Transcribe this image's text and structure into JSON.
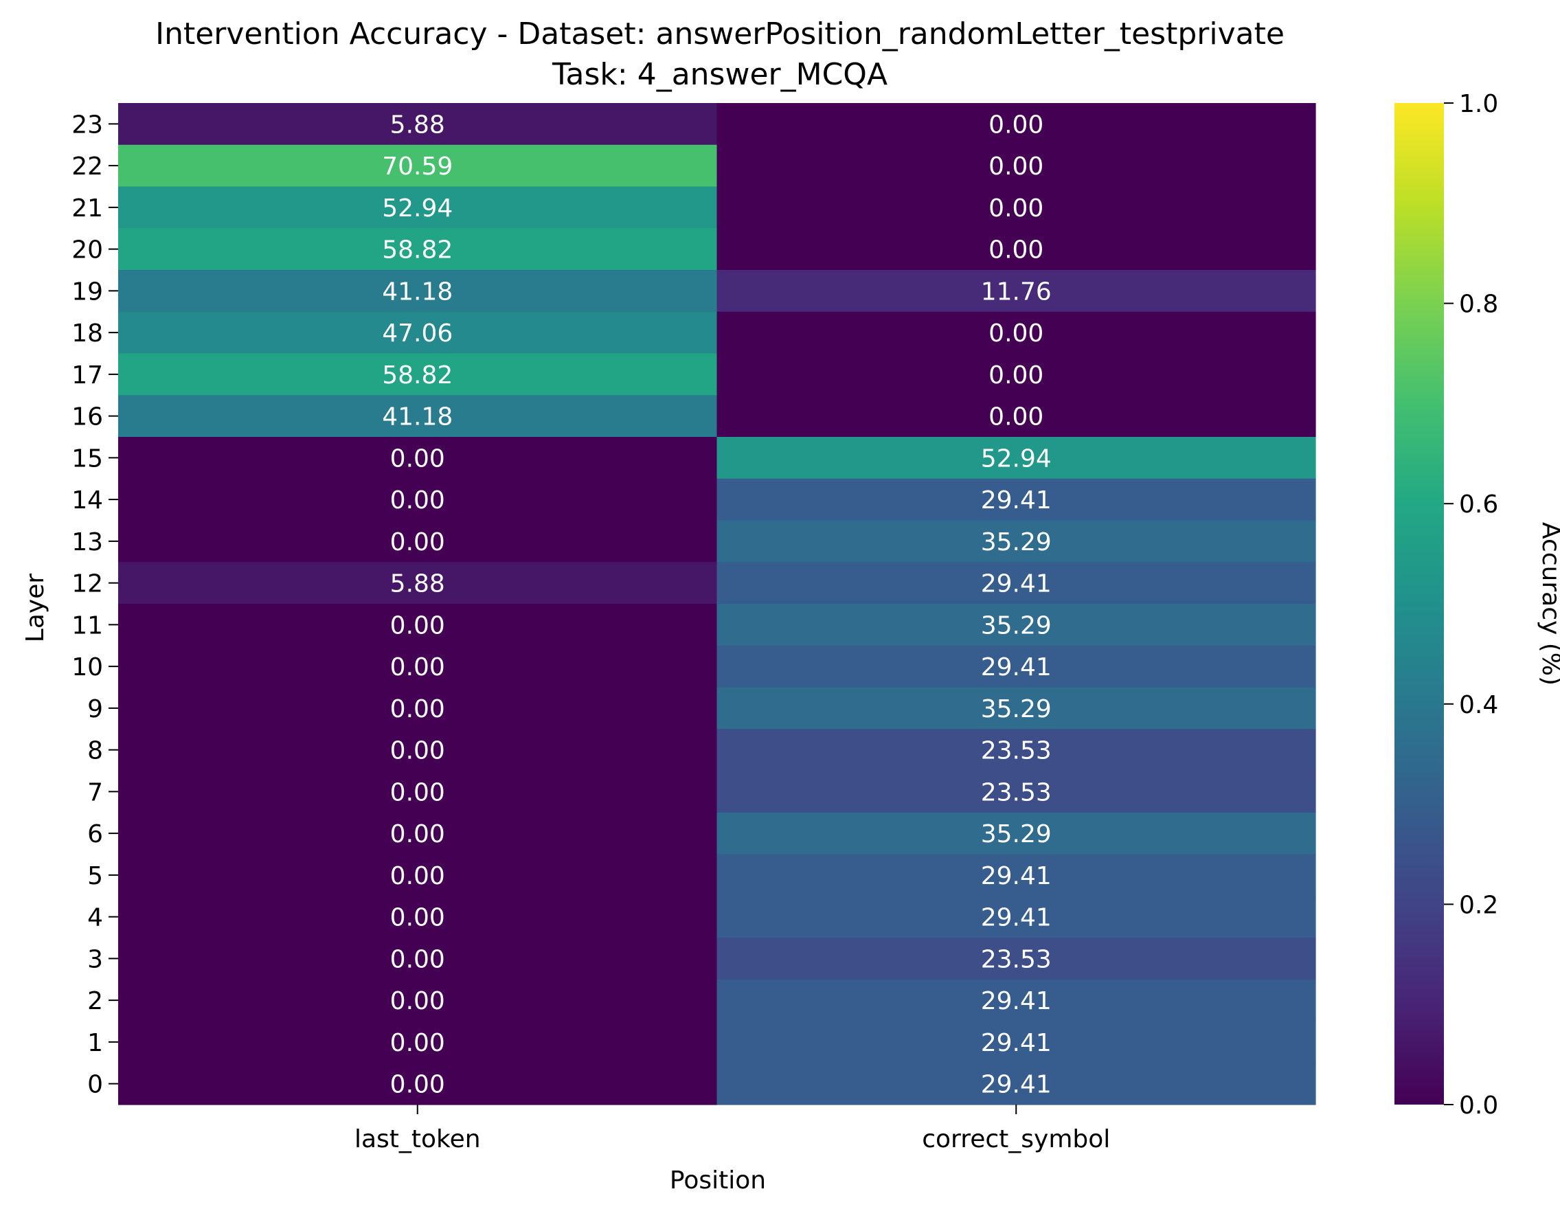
{
  "chart_data": {
    "type": "heatmap",
    "title": "Intervention Accuracy - Dataset: answerPosition_randomLetter_testprivate",
    "subtitle": "Task: 4_answer_MCQA",
    "xlabel": "Position",
    "ylabel": "Layer",
    "colorbar_label": "Accuracy (%)",
    "colormap": "viridis",
    "vmin": 0.0,
    "vmax": 1.0,
    "colorbar_ticks": [
      "0.0",
      "0.2",
      "0.4",
      "0.6",
      "0.8",
      "1.0"
    ],
    "columns": [
      "last_token",
      "correct_symbol"
    ],
    "rows": [
      {
        "layer": "23",
        "values": [
          5.88,
          0.0
        ],
        "labels": [
          "5.88",
          "0.00"
        ]
      },
      {
        "layer": "22",
        "values": [
          70.59,
          0.0
        ],
        "labels": [
          "70.59",
          "0.00"
        ]
      },
      {
        "layer": "21",
        "values": [
          52.94,
          0.0
        ],
        "labels": [
          "52.94",
          "0.00"
        ]
      },
      {
        "layer": "20",
        "values": [
          58.82,
          0.0
        ],
        "labels": [
          "58.82",
          "0.00"
        ]
      },
      {
        "layer": "19",
        "values": [
          41.18,
          11.76
        ],
        "labels": [
          "41.18",
          "11.76"
        ]
      },
      {
        "layer": "18",
        "values": [
          47.06,
          0.0
        ],
        "labels": [
          "47.06",
          "0.00"
        ]
      },
      {
        "layer": "17",
        "values": [
          58.82,
          0.0
        ],
        "labels": [
          "58.82",
          "0.00"
        ]
      },
      {
        "layer": "16",
        "values": [
          41.18,
          0.0
        ],
        "labels": [
          "41.18",
          "0.00"
        ]
      },
      {
        "layer": "15",
        "values": [
          0.0,
          52.94
        ],
        "labels": [
          "0.00",
          "52.94"
        ]
      },
      {
        "layer": "14",
        "values": [
          0.0,
          29.41
        ],
        "labels": [
          "0.00",
          "29.41"
        ]
      },
      {
        "layer": "13",
        "values": [
          0.0,
          35.29
        ],
        "labels": [
          "0.00",
          "35.29"
        ]
      },
      {
        "layer": "12",
        "values": [
          5.88,
          29.41
        ],
        "labels": [
          "5.88",
          "29.41"
        ]
      },
      {
        "layer": "11",
        "values": [
          0.0,
          35.29
        ],
        "labels": [
          "0.00",
          "35.29"
        ]
      },
      {
        "layer": "10",
        "values": [
          0.0,
          29.41
        ],
        "labels": [
          "0.00",
          "29.41"
        ]
      },
      {
        "layer": "9",
        "values": [
          0.0,
          35.29
        ],
        "labels": [
          "0.00",
          "35.29"
        ]
      },
      {
        "layer": "8",
        "values": [
          0.0,
          23.53
        ],
        "labels": [
          "0.00",
          "23.53"
        ]
      },
      {
        "layer": "7",
        "values": [
          0.0,
          23.53
        ],
        "labels": [
          "0.00",
          "23.53"
        ]
      },
      {
        "layer": "6",
        "values": [
          0.0,
          35.29
        ],
        "labels": [
          "0.00",
          "35.29"
        ]
      },
      {
        "layer": "5",
        "values": [
          0.0,
          29.41
        ],
        "labels": [
          "0.00",
          "29.41"
        ]
      },
      {
        "layer": "4",
        "values": [
          0.0,
          29.41
        ],
        "labels": [
          "0.00",
          "29.41"
        ]
      },
      {
        "layer": "3",
        "values": [
          0.0,
          23.53
        ],
        "labels": [
          "0.00",
          "23.53"
        ]
      },
      {
        "layer": "2",
        "values": [
          0.0,
          29.41
        ],
        "labels": [
          "0.00",
          "29.41"
        ]
      },
      {
        "layer": "1",
        "values": [
          0.0,
          29.41
        ],
        "labels": [
          "0.00",
          "29.41"
        ]
      },
      {
        "layer": "0",
        "values": [
          0.0,
          29.41
        ],
        "labels": [
          "0.00",
          "29.41"
        ]
      }
    ]
  }
}
